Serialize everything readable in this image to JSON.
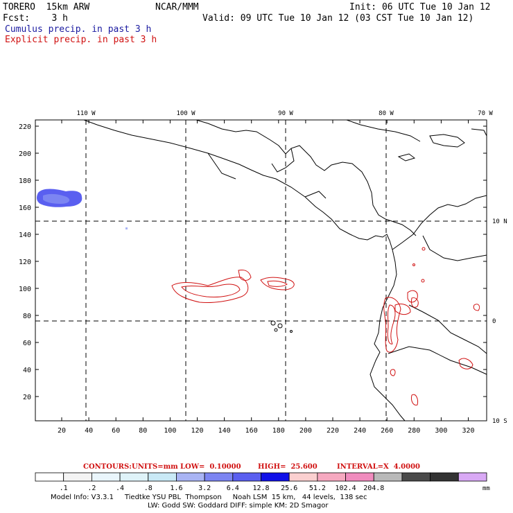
{
  "header": {
    "model": "TORERO  15km ARW",
    "org": "NCAR/MMM",
    "init": "Init: 06 UTC Tue 10 Jan 12",
    "fcst": "Fcst:    3 h",
    "valid": "Valid: 09 UTC Tue 10 Jan 12 (03 CST Tue 10 Jan 12)",
    "field1": "Cumulus precip. in past 3 h",
    "field2": "Explicit precip. in past 3 h"
  },
  "map": {
    "lon_labels": [
      "110 W",
      "100 W",
      "90 W",
      "80 W",
      "70 W"
    ],
    "lat_labels": [
      "10 N",
      "0",
      "10 S"
    ],
    "y_ticks": [
      "220",
      "200",
      "180",
      "160",
      "140",
      "120",
      "100",
      "80",
      "60",
      "40",
      "20"
    ],
    "x_ticks": [
      "20",
      "40",
      "60",
      "80",
      "100",
      "120",
      "140",
      "160",
      "180",
      "200",
      "220",
      "240",
      "260",
      "280",
      "300",
      "320"
    ]
  },
  "contour_info": {
    "label": "CONTOURS:",
    "units": "UNITS=mm",
    "low": "LOW=  0.10000",
    "high": "HIGH=  25.600",
    "interval": "INTERVAL=X  4.0000"
  },
  "colorbar": {
    "colors": [
      "#ffffff",
      "#f4f4f4",
      "#eaf6fc",
      "#dff3f9",
      "#c9e9f6",
      "#a9b4f4",
      "#7c85f2",
      "#5a5ff0",
      "#1010e8",
      "#fbd0d0",
      "#f6a9c0",
      "#f08cbe",
      "#b9b9b9",
      "#4a4a4a",
      "#333333",
      "#d9a9f5"
    ],
    "labels": [
      ".1",
      ".2",
      ".4",
      ".8",
      "1.6",
      "3.2",
      "6.4",
      "12.8",
      "25.6",
      "51.2",
      "102.4",
      "204.8"
    ],
    "unit": "mm"
  },
  "footer": {
    "line1": "Model Info: V3.3.1     Tiedtke YSU PBL  Thompson     Noah LSM  15 km,   44 levels,  138 sec",
    "line2": "LW: Godd SW: Goddard DIFF: simple KM: 2D Smagor"
  }
}
